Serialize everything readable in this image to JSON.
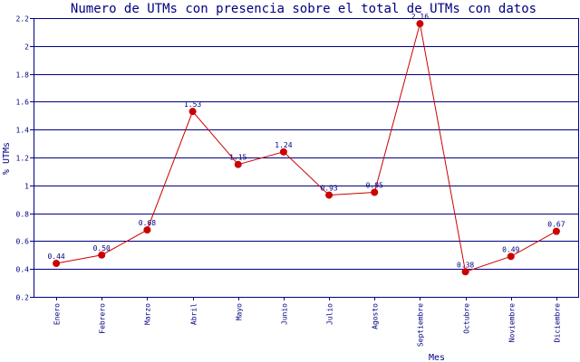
{
  "chart_data": {
    "type": "line",
    "title": "Numero de UTMs con presencia sobre el total de UTMs con datos",
    "xlabel": "Mes",
    "ylabel": "% UTMs",
    "ylim": [
      0.2,
      2.2
    ],
    "yticks": [
      "0.2",
      "0.4",
      "0.6",
      "0.8",
      "1",
      "1.2",
      "1.4",
      "1.6",
      "1.8",
      "2",
      "2.2"
    ],
    "grid": true,
    "categories": [
      "Enero",
      "Febrero",
      "Marzo",
      "Abril",
      "Mayo",
      "Junio",
      "Julio",
      "Agosto",
      "Septiembre",
      "Octubre",
      "Noviembre",
      "Diciembre"
    ],
    "series": [
      {
        "values": [
          0.44,
          0.5,
          0.68,
          1.53,
          1.15,
          1.24,
          0.93,
          0.95,
          2.16,
          0.38,
          0.49,
          0.67
        ],
        "labels": [
          "0.44",
          "0.50",
          "0.68",
          "1.53",
          "1.15",
          "1.24",
          "0.93",
          "0.95",
          "2.16",
          "0.38",
          "0.49",
          "0.67"
        ],
        "color": "#cc0000"
      }
    ],
    "colors": {
      "axes": "#000080",
      "grid": "#000080",
      "text": "#000080",
      "line": "#cc0000",
      "marker": "#cc0000"
    }
  }
}
